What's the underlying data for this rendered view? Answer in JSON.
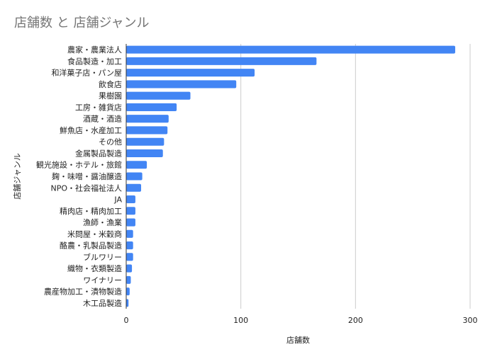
{
  "chart_data": {
    "type": "bar",
    "orientation": "horizontal",
    "title": "店舗数 と 店舗ジャンル",
    "xlabel": "店舗数",
    "ylabel": "店舗ジャンル",
    "xlim": [
      0,
      300
    ],
    "xticks": [
      0,
      100,
      200,
      300
    ],
    "grid": true,
    "legend": "none",
    "bar_color": "#4285f4",
    "categories": [
      "農家・農業法人",
      "食品製造・加工",
      "和洋菓子店・パン屋",
      "飲食店",
      "果樹園",
      "工房・雑貨店",
      "酒蔵・酒造",
      "鮮魚店・水産加工",
      "その他",
      "金属製品製造",
      "観光施設・ホテル・旅館",
      "麹・味噌・醤油醸造",
      "NPO・社会福祉法人",
      "JA",
      "精肉店・精肉加工",
      "漁師・漁業",
      "米問屋・米穀商",
      "酪農・乳製品製造",
      "ブルワリー",
      "織物・衣類製造",
      "ワイナリー",
      "農産物加工・漬物製造",
      "木工品製造"
    ],
    "values": [
      287,
      166,
      112,
      96,
      56,
      44,
      37,
      36,
      33,
      32,
      18,
      14,
      13,
      8,
      8,
      8,
      6,
      6,
      6,
      5,
      4,
      3,
      2
    ]
  }
}
